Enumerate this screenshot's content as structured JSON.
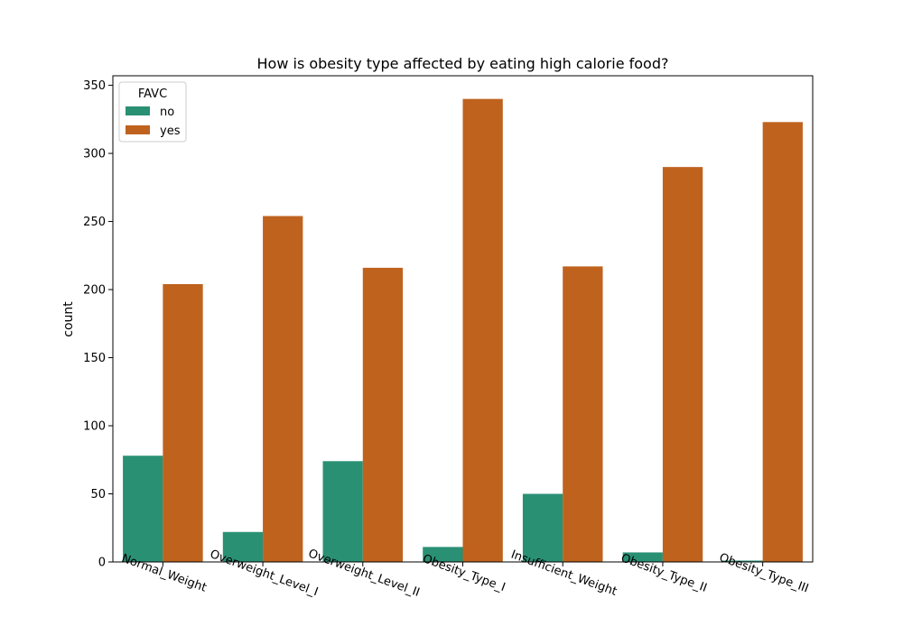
{
  "chart_data": {
    "type": "bar",
    "title": "How is obesity type affected by eating high calorie food?",
    "xlabel": "",
    "ylabel": "count",
    "categories": [
      "Normal_Weight",
      "Overweight_Level_I",
      "Overweight_Level_II",
      "Obesity_Type_I",
      "Insufficient_Weight",
      "Obesity_Type_II",
      "Obesity_Type_III"
    ],
    "series": [
      {
        "name": "no",
        "color": "#2a9074",
        "values": [
          78,
          22,
          74,
          11,
          50,
          7,
          1
        ]
      },
      {
        "name": "yes",
        "color": "#bf621e",
        "values": [
          204,
          254,
          216,
          340,
          217,
          290,
          323
        ]
      }
    ],
    "ylim": [
      0,
      357
    ],
    "yticks": [
      0,
      50,
      100,
      150,
      200,
      250,
      300,
      350
    ],
    "legend": {
      "title": "FAVC",
      "placement": "top-left"
    },
    "grid": false
  }
}
